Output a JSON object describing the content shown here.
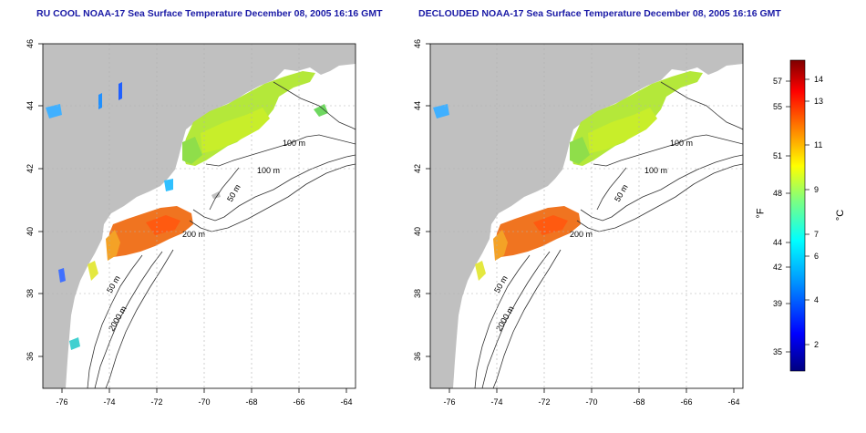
{
  "maps": [
    {
      "title": "RU COOL NOAA-17 Sea Surface Temperature December 08, 2005 16:16 GMT",
      "lon_ticks": [
        "-76",
        "-74",
        "-72",
        "-70",
        "-68",
        "-66",
        "-64"
      ],
      "lat_ticks": [
        "36",
        "38",
        "40",
        "42",
        "44",
        "46"
      ],
      "contour_labels": [
        "100 m",
        "100 m",
        "50 m",
        "200 m",
        "50 m",
        "2000 m"
      ]
    },
    {
      "title": "DECLOUDED NOAA-17 Sea Surface Temperature December 08, 2005 16:16 GMT",
      "lon_ticks": [
        "-76",
        "-74",
        "-72",
        "-70",
        "-68",
        "-66",
        "-64"
      ],
      "lat_ticks": [
        "36",
        "38",
        "40",
        "42",
        "44",
        "46"
      ],
      "contour_labels": [
        "100 m",
        "100 m",
        "50 m",
        "200 m",
        "50 m",
        "2000 m"
      ]
    }
  ],
  "colorbar": {
    "unit_f": "°F",
    "unit_c": "°C",
    "f_ticks": [
      "57",
      "55",
      "51",
      "48",
      "44",
      "42",
      "39",
      "35"
    ],
    "c_ticks": [
      "14",
      "13",
      "11",
      "9",
      "7",
      "6",
      "4",
      "2"
    ],
    "colors": [
      "#00007f",
      "#0000ff",
      "#007fff",
      "#00ffff",
      "#7fff7f",
      "#ffff00",
      "#ff7f00",
      "#ff0000",
      "#7f0000"
    ]
  }
}
